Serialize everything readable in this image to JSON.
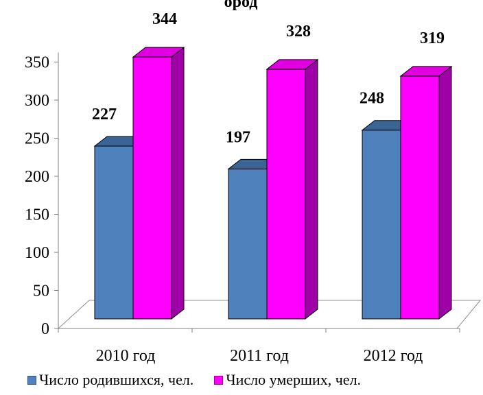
{
  "chart_data": {
    "type": "bar",
    "title_fragment": "ород",
    "categories": [
      "2010 год",
      "2011 год",
      "2012 год"
    ],
    "series": [
      {
        "name": "Число родившихся, чел.",
        "values": [
          227,
          197,
          248
        ]
      },
      {
        "name": "Число умерших, чел.",
        "values": [
          344,
          328,
          319
        ]
      }
    ],
    "ylim": [
      0,
      350
    ],
    "yticks": [
      "0",
      "50",
      "100",
      "150",
      "200",
      "250",
      "300",
      "350"
    ],
    "grid": false,
    "legend_position": "bottom",
    "colors": {
      "series1_front": "#4F81BD",
      "series1_top": "#3A6494",
      "series1_side": "#2E5386",
      "series2_front": "#FF00FF",
      "series2_top": "#E000E0",
      "series2_side": "#A000A8"
    }
  }
}
